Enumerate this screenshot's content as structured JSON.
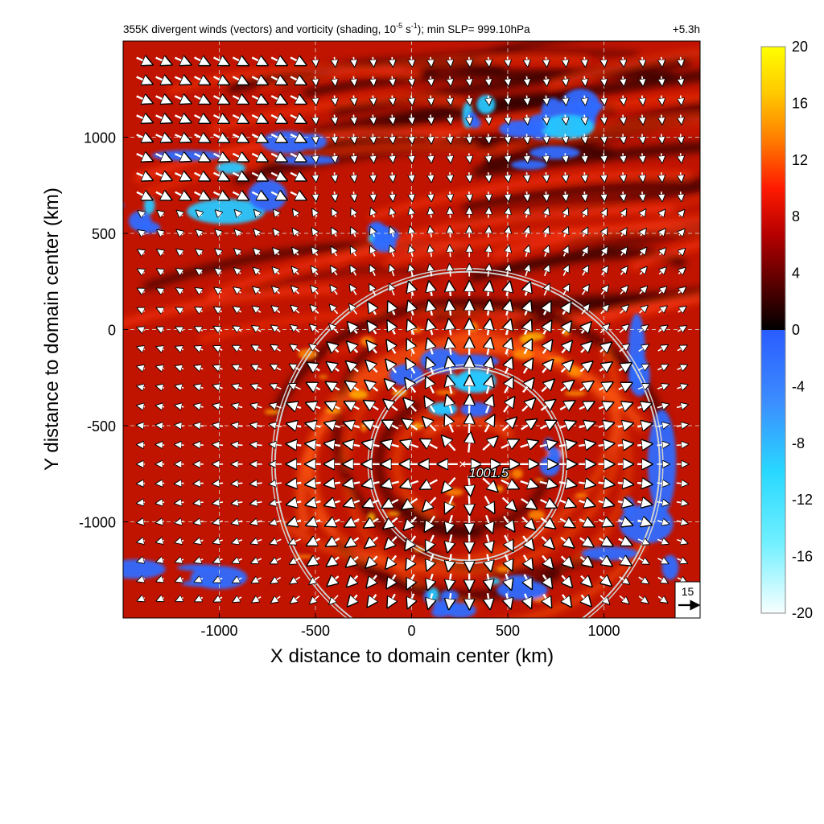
{
  "chart_data": {
    "type": "heatmap",
    "title_main": "355K divergent winds (vectors) and vorticity (shading, 10",
    "title_exp": "-5",
    "title_mid": " s",
    "title_exp2": "-1",
    "title_end": "); min SLP= 999.10hPa",
    "time_label": "+5.3h",
    "xlabel": "X distance to domain center (km)",
    "ylabel": "Y distance to domain center (km)",
    "xlim": [
      -1500,
      1500
    ],
    "ylim": [
      -1500,
      1500
    ],
    "xticks": [
      -1000,
      -500,
      0,
      500,
      1000
    ],
    "yticks": [
      1000,
      500,
      0,
      -500,
      -1000
    ],
    "xtick_labels": [
      "-1000",
      "-500",
      "0",
      "500",
      "1000"
    ],
    "ytick_labels": [
      "1000",
      "500",
      "0",
      "-500",
      "-1000"
    ],
    "grid": true,
    "colorbar": {
      "min": -20,
      "max": 20,
      "ticks": [
        20,
        16,
        12,
        8,
        4,
        0,
        -4,
        -8,
        -12,
        -16,
        -20
      ],
      "tick_labels": [
        "20",
        "16",
        "12",
        "8",
        "4",
        "0",
        "-4",
        "-8",
        "-12",
        "-16",
        "-20"
      ],
      "colors_positive": [
        "#000000",
        "#5a0000",
        "#b40000",
        "#ff1a00",
        "#ff7a00",
        "#ffc800",
        "#ffff00"
      ],
      "colors_negative": [
        "#2a5cff",
        "#3c8cff",
        "#28d8ff",
        "#70f0ff",
        "#f8ffff"
      ]
    },
    "storm_center": {
      "x": 290,
      "y": -700,
      "label": "1001.5"
    },
    "range_circles": [
      {
        "x": 290,
        "y": -700,
        "radius": 500
      },
      {
        "x": 290,
        "y": -700,
        "radius": 1000
      }
    ],
    "reference_vector": {
      "value": "15"
    },
    "background_color": "#c01400"
  }
}
